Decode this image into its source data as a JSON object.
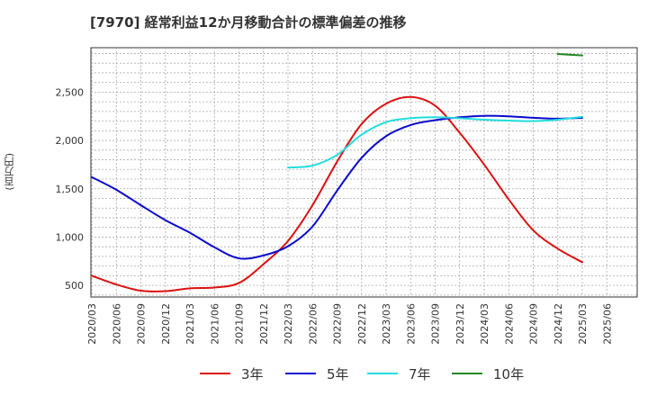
{
  "chart_data": {
    "type": "line",
    "title": "[7970]  経常利益12か月移動合計の標準偏差の推移",
    "ylabel": "(百万円)",
    "xlabel": "",
    "x_ticks": [
      "2020/03",
      "2020/06",
      "2020/09",
      "2020/12",
      "2021/03",
      "2021/06",
      "2021/09",
      "2021/12",
      "2022/03",
      "2022/06",
      "2022/09",
      "2022/12",
      "2023/03",
      "2023/06",
      "2023/09",
      "2023/12",
      "2024/03",
      "2024/06",
      "2024/09",
      "2024/12",
      "2025/03",
      "2025/06"
    ],
    "y_ticks": [
      "500",
      "1,000",
      "1,500",
      "2,000",
      "2,500"
    ],
    "ylim": [
      380,
      2960
    ],
    "grid": true,
    "legend_position": "bottom",
    "series": [
      {
        "name": "3年",
        "color": "#dd1111",
        "points": [
          [
            "2020/03",
            600
          ],
          [
            "2020/06",
            510
          ],
          [
            "2020/09",
            445
          ],
          [
            "2020/12",
            440
          ],
          [
            "2021/03",
            470
          ],
          [
            "2021/06",
            478
          ],
          [
            "2021/09",
            525
          ],
          [
            "2021/12",
            720
          ],
          [
            "2022/03",
            960
          ],
          [
            "2022/06",
            1330
          ],
          [
            "2022/09",
            1780
          ],
          [
            "2022/12",
            2170
          ],
          [
            "2023/03",
            2380
          ],
          [
            "2023/06",
            2450
          ],
          [
            "2023/09",
            2360
          ],
          [
            "2023/12",
            2080
          ],
          [
            "2024/03",
            1750
          ],
          [
            "2024/06",
            1390
          ],
          [
            "2024/09",
            1070
          ],
          [
            "2024/12",
            880
          ],
          [
            "2025/03",
            740
          ]
        ]
      },
      {
        "name": "5年",
        "color": "#0a0acc",
        "points": [
          [
            "2020/03",
            1620
          ],
          [
            "2020/06",
            1490
          ],
          [
            "2020/09",
            1330
          ],
          [
            "2020/12",
            1175
          ],
          [
            "2021/03",
            1045
          ],
          [
            "2021/06",
            895
          ],
          [
            "2021/09",
            780
          ],
          [
            "2021/12",
            810
          ],
          [
            "2022/03",
            905
          ],
          [
            "2022/06",
            1110
          ],
          [
            "2022/09",
            1480
          ],
          [
            "2022/12",
            1820
          ],
          [
            "2023/03",
            2045
          ],
          [
            "2023/06",
            2160
          ],
          [
            "2023/09",
            2210
          ],
          [
            "2023/12",
            2240
          ],
          [
            "2024/03",
            2255
          ],
          [
            "2024/06",
            2250
          ],
          [
            "2024/09",
            2235
          ],
          [
            "2024/12",
            2225
          ],
          [
            "2025/03",
            2235
          ]
        ]
      },
      {
        "name": "7年",
        "color": "#22dddd",
        "points": [
          [
            "2022/03",
            1720
          ],
          [
            "2022/06",
            1740
          ],
          [
            "2022/09",
            1850
          ],
          [
            "2022/12",
            2060
          ],
          [
            "2023/03",
            2190
          ],
          [
            "2023/06",
            2230
          ],
          [
            "2023/09",
            2240
          ],
          [
            "2023/12",
            2230
          ],
          [
            "2024/03",
            2215
          ],
          [
            "2024/06",
            2205
          ],
          [
            "2024/09",
            2200
          ],
          [
            "2024/12",
            2215
          ],
          [
            "2025/03",
            2245
          ]
        ]
      },
      {
        "name": "10年",
        "color": "#228822",
        "points": [
          [
            "2024/12",
            2895
          ],
          [
            "2025/03",
            2880
          ]
        ]
      }
    ]
  }
}
